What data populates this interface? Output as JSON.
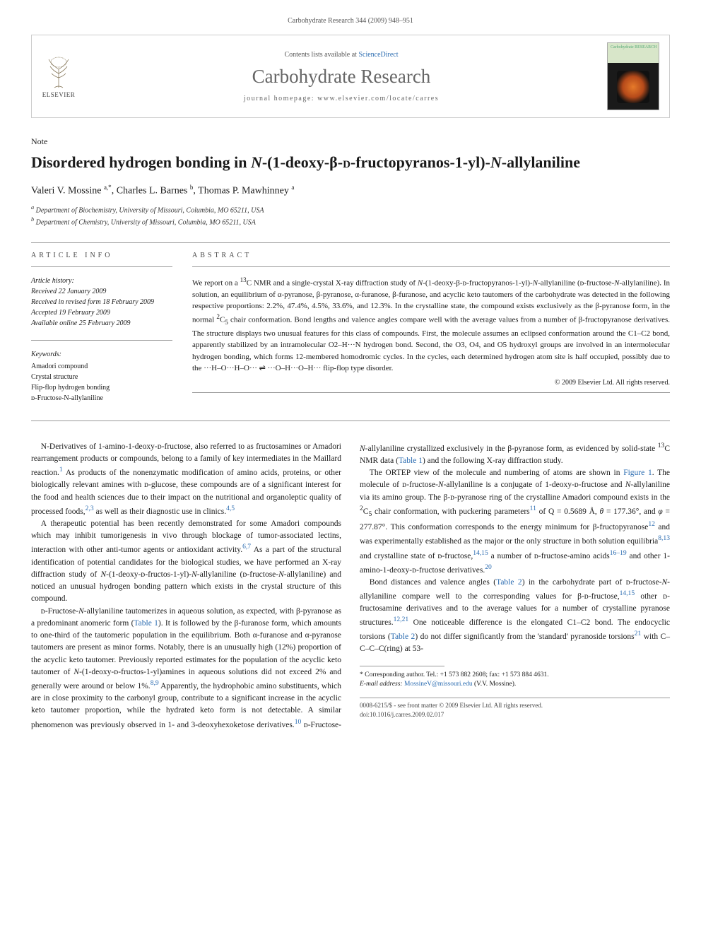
{
  "running_header": "Carbohydrate Research 344 (2009) 948–951",
  "masthead": {
    "publisher_label": "ELSEVIER",
    "contents_prefix": "Contents lists available at ",
    "contents_link": "ScienceDirect",
    "journal": "Carbohydrate Research",
    "homepage_prefix": "journal homepage: ",
    "homepage_url": "www.elsevier.com/locate/carres",
    "cover_title": "Carbohydrate RESEARCH"
  },
  "article_type": "Note",
  "title_html": "Disordered hydrogen bonding in <i>N</i>-(1-deoxy-β-<span style='font-variant:small-caps'>d</span>-fructopyranos-1-yl)-<i>N</i>-allylaniline",
  "authors_html": "Valeri V. Mossine <sup>a,*</sup>, Charles L. Barnes <sup>b</sup>, Thomas P. Mawhinney <sup>a</sup>",
  "affiliations": {
    "a": "Department of Biochemistry, University of Missouri, Columbia, MO 65211, USA",
    "b": "Department of Chemistry, University of Missouri, Columbia, MO 65211, USA"
  },
  "info_head": "ARTICLE INFO",
  "abs_head": "ABSTRACT",
  "history": {
    "label": "Article history:",
    "received": "Received 22 January 2009",
    "revised": "Received in revised form 18 February 2009",
    "accepted": "Accepted 19 February 2009",
    "online": "Available online 25 February 2009"
  },
  "keywords": {
    "label": "Keywords:",
    "items": [
      "Amadori compound",
      "Crystal structure",
      "Flip-flop hydrogen bonding",
      "ᴅ-Fructose-N-allylaniline"
    ]
  },
  "abstract_html": "We report on a <sup>13</sup>C NMR and a single-crystal X-ray diffraction study of <i>N</i>-(1-deoxy-β-ᴅ-fructopyranos-1-yl)-<i>N</i>-allylaniline (ᴅ-fructose-<i>N</i>-allylaniline). In solution, an equilibrium of α-pyranose, β-pyranose, α-furanose, β-furanose, and acyclic keto tautomers of the carbohydrate was detected in the following respective proportions: 2.2%, 47.4%, 4.5%, 33.6%, and 12.3%. In the crystalline state, the compound exists exclusively as the β-pyranose form, in the normal <sup>2</sup>C<sub>5</sub> chair conformation. Bond lengths and valence angles compare well with the average values from a number of β-fructopyranose derivatives. The structure displays two unusual features for this class of compounds. First, the molecule assumes an eclipsed conformation around the C1–C2 bond, apparently stabilized by an intramolecular O2–H···N hydrogen bond. Second, the O3, O4, and O5 hydroxyl groups are involved in an intermolecular hydrogen bonding, which forms 12-membered homodromic cycles. In the cycles, each determined hydrogen atom site is half occupied, possibly due to the ···H–O···H–O··· ⇌ ···O–H···O–H··· flip-flop type disorder.",
  "copyright": "© 2009 Elsevier Ltd. All rights reserved.",
  "body_paragraphs_html": [
    "N-Derivatives of 1-amino-1-deoxy-ᴅ-fructose, also referred to as fructosamines or Amadori rearrangement products or compounds, belong to a family of key intermediates in the Maillard reaction.<sup class='ref-link'>1</sup> As products of the nonenzymatic modification of amino acids, proteins, or other biologically relevant amines with ᴅ-glucose, these compounds are of a significant interest for the food and health sciences due to their impact on the nutritional and organoleptic quality of processed foods,<sup class='ref-link'>2,3</sup> as well as their diagnostic use in clinics.<sup class='ref-link'>4,5</sup>",
    "A therapeutic potential has been recently demonstrated for some Amadori compounds which may inhibit tumorigenesis in vivo through blockage of tumor-associated lectins, interaction with other anti-tumor agents or antioxidant activity.<sup class='ref-link'>6,7</sup> As a part of the structural identification of potential candidates for the biological studies, we have performed an X-ray diffraction study of <i>N</i>-(1-deoxy-ᴅ-fructos-1-yl)-<i>N</i>-allylaniline (ᴅ-fructose-<i>N</i>-allylaniline) and noticed an unusual hydrogen bonding pattern which exists in the crystal structure of this compound.",
    "ᴅ-Fructose-<i>N</i>-allylaniline tautomerizes in aqueous solution, as expected, with β-pyranose as a predominant anomeric form (<span class='ref-link'>Table 1</span>). It is followed by the β-furanose form, which amounts to one-third of the tautomeric population in the equilibrium. Both α-furanose and α-pyranose tautomers are present as minor forms. Notably, there is an unusually high (12%) proportion of the acyclic keto tautomer. Previously reported estimates for the population of the acyclic keto tautomer of <i>N</i>-(1-deoxy-ᴅ-fructos-1-yl)amines in aqueous solutions did not exceed 2% and generally were around or below 1%.<sup class='ref-link'>8,9</sup> Apparently, the hydrophobic amino substituents, which are in close proximity to the carbonyl group, contribute to a significant increase in the acyclic keto tautomer proportion, while the hydrated keto form is not detectable. A similar phenomenon was previously observed in 1- and 3-deoxyhexoketose derivatives.<sup class='ref-link'>10</sup> ᴅ-Fructose-<i>N</i>-allylaniline crystallized exclusively in the β-pyranose form, as evidenced by solid-state <sup>13</sup>C NMR data (<span class='ref-link'>Table 1</span>) and the following X-ray diffraction study.",
    "The ORTEP view of the molecule and numbering of atoms are shown in <span class='ref-link'>Figure 1</span>. The molecule of ᴅ-fructose-<i>N</i>-allylaniline is a conjugate of 1-deoxy-ᴅ-fructose and <i>N</i>-allylaniline via its amino group. The β-ᴅ-pyranose ring of the crystalline Amadori compound exists in the <sup>2</sup>C<sub>5</sub> chair conformation, with puckering parameters<sup class='ref-link'>11</sup> of Q = 0.5689 Å, <i>θ</i> = 177.36°, and <i>φ</i> = 277.87°. This conformation corresponds to the energy minimum for β-fructopyranose<sup class='ref-link'>12</sup> and was experimentally established as the major or the only structure in both solution equilibria<sup class='ref-link'>8,13</sup> and crystalline state of ᴅ-fructose,<sup class='ref-link'>14,15</sup> a number of ᴅ-fructose-amino acids<sup class='ref-link'>16–19</sup> and other 1-amino-1-deoxy-ᴅ-fructose derivatives.<sup class='ref-link'>20</sup>",
    "Bond distances and valence angles (<span class='ref-link'>Table 2</span>) in the carbohydrate part of ᴅ-fructose-<i>N</i>-allylaniline compare well to the corresponding values for β-ᴅ-fructose,<sup class='ref-link'>14,15</sup> other ᴅ-fructosamine derivatives and to the average values for a number of crystalline pyranose structures.<sup class='ref-link'>12,21</sup> One noticeable difference is the elongated C1–C2 bond. The endocyclic torsions (<span class='ref-link'>Table 2</span>) do not differ significantly from the 'standard' pyranoside torsions<sup class='ref-link'>21</sup> with C–C–C–C(ring) at 53-"
  ],
  "footnotes": {
    "corr": "* Corresponding author. Tel.: +1 573 882 2608; fax: +1 573 884 4631.",
    "email_label": "E-mail address:",
    "email": "MossineV@missouri.edu",
    "email_suffix": "(V.V. Mossine)."
  },
  "bottom": {
    "issn_line": "0008-6215/$ - see front matter © 2009 Elsevier Ltd. All rights reserved.",
    "doi": "doi:10.1016/j.carres.2009.02.017"
  },
  "colors": {
    "link": "#2a6bb0",
    "rule": "#999999",
    "text": "#1a1a1a",
    "muted": "#555555"
  }
}
